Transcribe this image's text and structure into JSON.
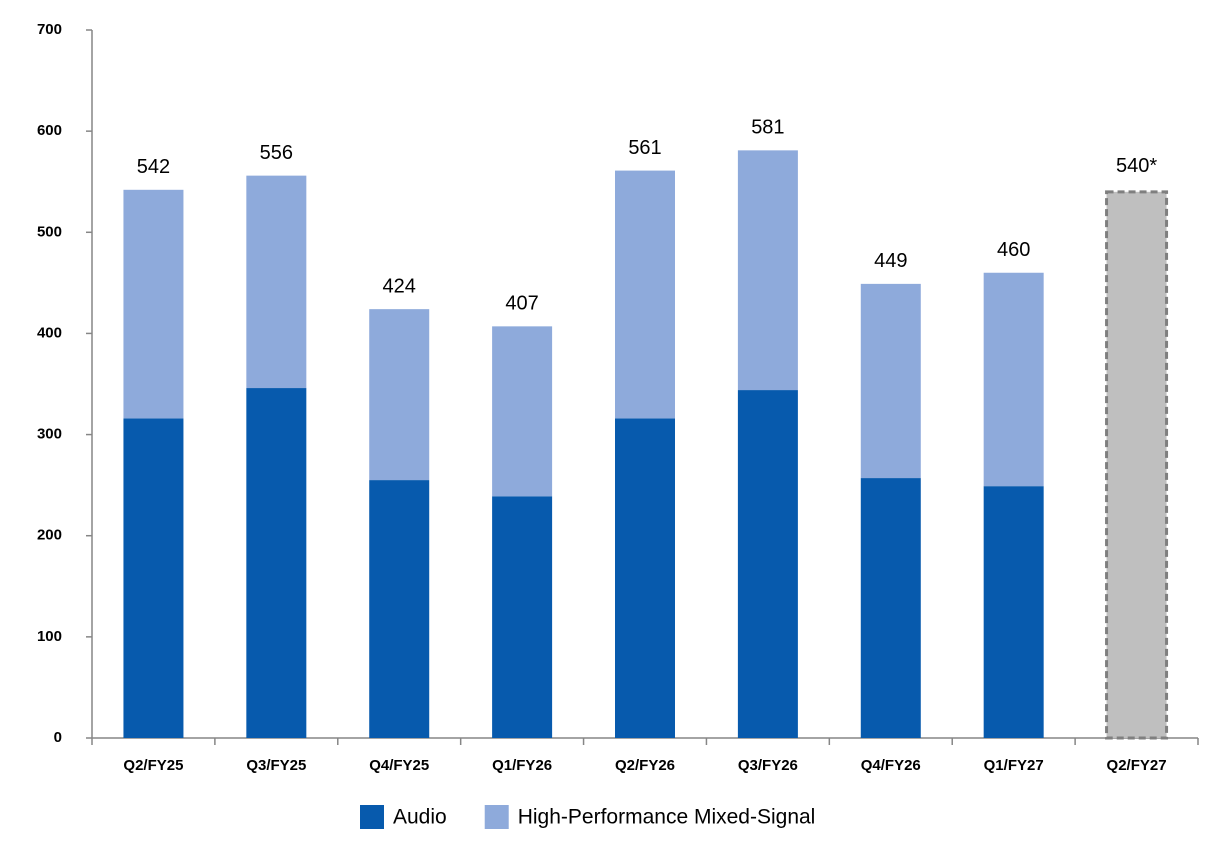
{
  "chart_data": {
    "type": "stacked_bar",
    "categories": [
      "Q2/FY25",
      "Q3/FY25",
      "Q4/FY25",
      "Q1/FY26",
      "Q2/FY26",
      "Q3/FY26",
      "Q4/FY26",
      "Q1/FY27",
      "Q2/FY27"
    ],
    "series": [
      {
        "name": "Audio",
        "color": "#075aad",
        "values": [
          316,
          346,
          255,
          239,
          316,
          344,
          257,
          249,
          null
        ]
      },
      {
        "name": "High-Performance Mixed-Signal",
        "color": "#8eaadb",
        "values": [
          226,
          210,
          169,
          168,
          245,
          237,
          192,
          211,
          null
        ]
      }
    ],
    "totals": [
      542,
      556,
      424,
      407,
      561,
      581,
      449,
      460,
      null
    ],
    "guidance": {
      "color": "#bfbfbf",
      "values": [
        null,
        null,
        null,
        null,
        null,
        null,
        null,
        null,
        540
      ],
      "value_labels": [
        null,
        null,
        null,
        null,
        null,
        null,
        null,
        null,
        "540*"
      ]
    },
    "ylim": [
      0,
      700
    ],
    "yticks": [
      0,
      100,
      200,
      300,
      400,
      500,
      600,
      700
    ],
    "grid": false,
    "legend": "bottom"
  }
}
